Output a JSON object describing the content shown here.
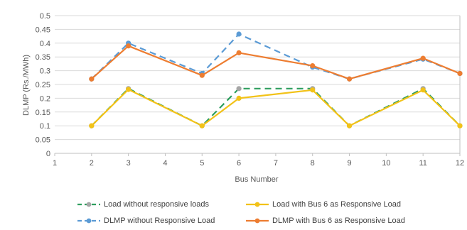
{
  "chart_data": {
    "type": "line",
    "xlabel": "Bus Number",
    "ylabel": "DLMP (Rs./MWh)",
    "x_ticks": [
      "1",
      "2",
      "3",
      "4",
      "5",
      "6",
      "7",
      "8",
      "9",
      "10",
      "11",
      "12"
    ],
    "y_ticks": [
      "0",
      "0.05",
      "0.1",
      "0.15",
      "0.2",
      "0.25",
      "0.3",
      "0.35",
      "0.4",
      "0.45",
      "0.5"
    ],
    "xlim": [
      1,
      12
    ],
    "ylim": [
      0,
      0.5
    ],
    "grid": "horizontal",
    "legend_position": "bottom",
    "series": [
      {
        "name": "Load without responsive loads",
        "color": "#2e9e5e",
        "marker_color": "#a6a6a6",
        "dash": "dashed",
        "x": [
          2,
          3,
          5,
          6,
          8,
          9,
          11,
          12
        ],
        "values": [
          0.1,
          0.235,
          0.1,
          0.235,
          0.235,
          0.1,
          0.235,
          0.1
        ]
      },
      {
        "name": "Load with Bus 6 as Responsive Load",
        "color": "#f2c218",
        "marker_color": "#f2c218",
        "dash": "solid",
        "x": [
          2,
          3,
          5,
          6,
          8,
          9,
          11,
          12
        ],
        "values": [
          0.1,
          0.232,
          0.1,
          0.2,
          0.23,
          0.1,
          0.23,
          0.1
        ]
      },
      {
        "name": "DLMP without Responsive Load",
        "color": "#5b9bd5",
        "marker_color": "#5b9bd5",
        "dash": "dashed",
        "x": [
          2,
          3,
          5,
          6,
          8,
          9,
          11,
          12
        ],
        "values": [
          0.27,
          0.4,
          0.29,
          0.433,
          0.313,
          0.27,
          0.342,
          0.29
        ]
      },
      {
        "name": "DLMP with Bus 6 as Responsive Load",
        "color": "#ed7d31",
        "marker_color": "#ed7d31",
        "dash": "solid",
        "x": [
          2,
          3,
          5,
          6,
          8,
          9,
          11,
          12
        ],
        "values": [
          0.27,
          0.39,
          0.283,
          0.365,
          0.318,
          0.27,
          0.345,
          0.29
        ]
      }
    ]
  }
}
